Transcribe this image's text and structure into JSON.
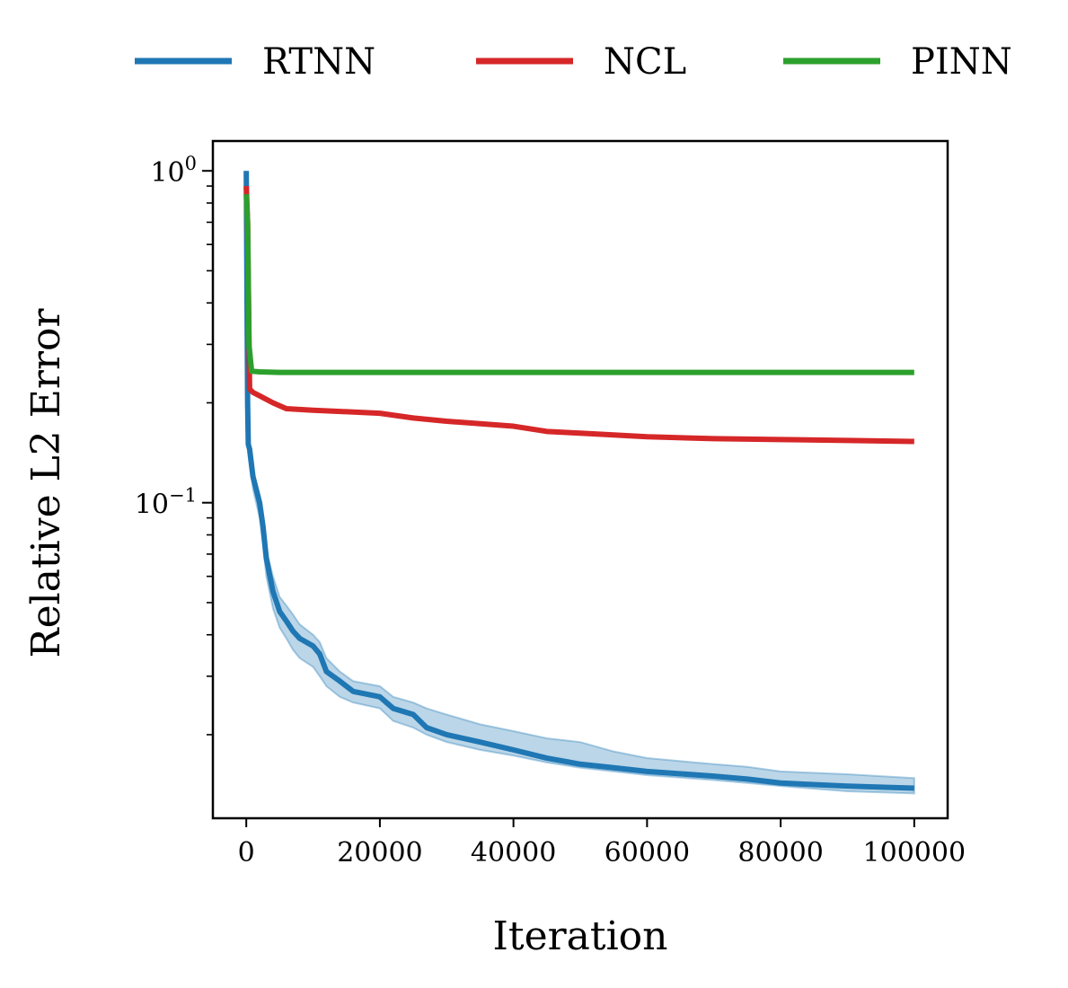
{
  "chart_data": {
    "type": "line",
    "title": "",
    "xlabel": "Iteration",
    "ylabel": "Relative L2 Error",
    "xlim": [
      -5000,
      105000
    ],
    "ylim": [
      0.0112,
      1.23
    ],
    "yscale": "log",
    "grid": false,
    "legend_position": "top, above plot, single row",
    "xticks": [
      {
        "value": 0,
        "label": "0"
      },
      {
        "value": 20000,
        "label": "20000"
      },
      {
        "value": 40000,
        "label": "40000"
      },
      {
        "value": 60000,
        "label": "60000"
      },
      {
        "value": 80000,
        "label": "80000"
      },
      {
        "value": 100000,
        "label": "100000"
      }
    ],
    "yticks": [
      {
        "value": 1,
        "base": "10",
        "exp": "0"
      },
      {
        "value": 0.1,
        "base": "10",
        "exp": "−1"
      }
    ],
    "series": [
      {
        "name": "RTNN",
        "color": "#1f77b4",
        "band_color": "#1f77b4",
        "x": [
          0,
          200,
          300,
          500,
          1000,
          2000,
          2500,
          3000,
          4000,
          5000,
          6000,
          7000,
          8000,
          10000,
          11000,
          12000,
          14000,
          16000,
          20000,
          22000,
          25000,
          27000,
          30000,
          35000,
          40000,
          45000,
          50000,
          55000,
          60000,
          70000,
          75000,
          80000,
          90000,
          100000
        ],
        "y": [
          1.0,
          0.2,
          0.15,
          0.145,
          0.12,
          0.1,
          0.085,
          0.068,
          0.054,
          0.047,
          0.044,
          0.041,
          0.039,
          0.037,
          0.035,
          0.031,
          0.029,
          0.027,
          0.026,
          0.024,
          0.023,
          0.021,
          0.02,
          0.019,
          0.018,
          0.017,
          0.0163,
          0.0159,
          0.0155,
          0.015,
          0.0147,
          0.0143,
          0.014,
          0.0138
        ],
        "lower": [
          1.0,
          0.19,
          0.14,
          0.13,
          0.11,
          0.09,
          0.075,
          0.06,
          0.048,
          0.042,
          0.039,
          0.036,
          0.034,
          0.032,
          0.03,
          0.028,
          0.026,
          0.025,
          0.024,
          0.022,
          0.021,
          0.02,
          0.019,
          0.018,
          0.0173,
          0.0165,
          0.0159,
          0.0155,
          0.0151,
          0.0146,
          0.0143,
          0.014,
          0.0135,
          0.0133
        ],
        "upper": [
          1.0,
          0.21,
          0.16,
          0.15,
          0.125,
          0.105,
          0.09,
          0.072,
          0.06,
          0.052,
          0.049,
          0.046,
          0.043,
          0.04,
          0.038,
          0.034,
          0.031,
          0.029,
          0.028,
          0.026,
          0.025,
          0.024,
          0.023,
          0.0215,
          0.0205,
          0.0195,
          0.019,
          0.0178,
          0.017,
          0.0163,
          0.016,
          0.0155,
          0.0152,
          0.0148
        ]
      },
      {
        "name": "NCL",
        "color": "#d62728",
        "x": [
          0,
          200,
          500,
          1000,
          2000,
          4000,
          6000,
          10000,
          15000,
          20000,
          25000,
          30000,
          40000,
          45000,
          50000,
          60000,
          70000,
          80000,
          90000,
          100000
        ],
        "y": [
          0.9,
          0.7,
          0.22,
          0.215,
          0.21,
          0.2,
          0.192,
          0.19,
          0.188,
          0.186,
          0.18,
          0.176,
          0.17,
          0.164,
          0.162,
          0.158,
          0.156,
          0.155,
          0.154,
          0.153
        ]
      },
      {
        "name": "PINN",
        "color": "#2ca02c",
        "x": [
          0,
          200,
          400,
          800,
          2000,
          5000,
          20000,
          50000,
          100000
        ],
        "y": [
          0.85,
          0.7,
          0.3,
          0.249,
          0.248,
          0.247,
          0.247,
          0.247,
          0.247
        ]
      }
    ]
  }
}
